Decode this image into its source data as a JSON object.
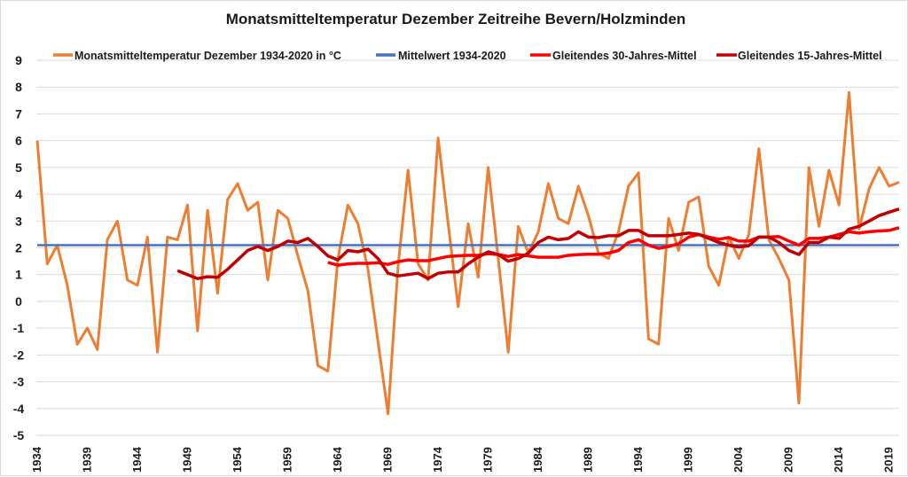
{
  "chart_data": {
    "type": "line",
    "title": "Monatsmitteltemperatur Dezember Zeitreihe Bevern/Holzminden",
    "xlabel": "",
    "ylabel": "",
    "ylim": [
      -5,
      9
    ],
    "yticks": [
      "9",
      "8",
      "7",
      "6",
      "5",
      "4",
      "3",
      "2",
      "1",
      "0",
      "-1",
      "-2",
      "-3",
      "-4",
      "-5"
    ],
    "ytick_values": [
      9,
      8,
      7,
      6,
      5,
      4,
      3,
      2,
      1,
      0,
      -1,
      -2,
      -3,
      -4,
      -5
    ],
    "xlim": [
      1934,
      2020
    ],
    "xticks": [
      "1934",
      "1939",
      "1944",
      "1949",
      "1954",
      "1959",
      "1964",
      "1969",
      "1974",
      "1979",
      "1984",
      "1989",
      "1994",
      "1999",
      "2004",
      "2009",
      "2014",
      "2019"
    ],
    "xtick_values": [
      1934,
      1939,
      1944,
      1949,
      1954,
      1959,
      1964,
      1969,
      1974,
      1979,
      1984,
      1989,
      1994,
      1999,
      2004,
      2009,
      2014,
      2019
    ],
    "grid": "horizontal",
    "legend_position": "top",
    "x": [
      1934,
      1935,
      1936,
      1937,
      1938,
      1939,
      1940,
      1941,
      1942,
      1943,
      1944,
      1945,
      1946,
      1947,
      1948,
      1949,
      1950,
      1951,
      1952,
      1953,
      1954,
      1955,
      1956,
      1957,
      1958,
      1959,
      1960,
      1961,
      1962,
      1963,
      1964,
      1965,
      1966,
      1967,
      1968,
      1969,
      1970,
      1971,
      1972,
      1973,
      1974,
      1975,
      1976,
      1977,
      1978,
      1979,
      1980,
      1981,
      1982,
      1983,
      1984,
      1985,
      1986,
      1987,
      1988,
      1989,
      1990,
      1991,
      1992,
      1993,
      1994,
      1995,
      1996,
      1997,
      1998,
      1999,
      2000,
      2001,
      2002,
      2003,
      2004,
      2005,
      2006,
      2007,
      2008,
      2009,
      2010,
      2011,
      2012,
      2013,
      2014,
      2015,
      2016,
      2017,
      2018,
      2019,
      2020
    ],
    "series": [
      {
        "name": "Monatsmitteltemperatur Dezember 1934-2020 in °C",
        "color": "#ED7D31",
        "start_year": 1934,
        "values": [
          6.0,
          1.4,
          2.1,
          0.6,
          -1.6,
          -1.0,
          -1.8,
          2.3,
          3.0,
          0.8,
          0.6,
          2.4,
          -1.9,
          2.4,
          2.3,
          3.6,
          -1.1,
          3.4,
          0.3,
          3.8,
          4.4,
          3.4,
          3.7,
          0.8,
          3.4,
          3.1,
          1.7,
          0.4,
          -2.4,
          -2.6,
          1.6,
          3.6,
          2.9,
          1.2,
          -1.5,
          -4.2,
          1.3,
          4.9,
          1.4,
          0.8,
          6.1,
          2.9,
          -0.2,
          2.9,
          0.9,
          5.0,
          1.6,
          -1.9,
          2.8,
          1.8,
          2.6,
          4.4,
          3.1,
          2.9,
          4.3,
          3.2,
          1.8,
          1.6,
          2.6,
          4.3,
          4.8,
          -1.4,
          -1.6,
          3.1,
          1.9,
          3.7,
          3.9,
          1.3,
          0.6,
          2.4,
          1.6,
          2.5,
          5.7,
          2.3,
          1.6,
          0.8,
          -3.8,
          5.0,
          2.8,
          4.9,
          3.6,
          7.8,
          2.7,
          4.2,
          5.0,
          4.3,
          4.45
        ]
      },
      {
        "name": "Mittelwert 1934-2020",
        "color": "#4472C4",
        "start_year": 1934,
        "constant": 2.1
      },
      {
        "name": "Gleitendes 30-Jahres-Mittel",
        "color": "#FF0000",
        "start_year": 1963,
        "values": [
          1.45,
          1.35,
          1.4,
          1.42,
          1.42,
          1.44,
          1.38,
          1.48,
          1.55,
          1.52,
          1.52,
          1.6,
          1.68,
          1.7,
          1.72,
          1.72,
          1.78,
          1.75,
          1.68,
          1.75,
          1.7,
          1.65,
          1.65,
          1.65,
          1.72,
          1.75,
          1.76,
          1.76,
          1.8,
          1.9,
          2.2,
          2.3,
          2.1,
          1.98,
          2.05,
          2.15,
          2.4,
          2.5,
          2.4,
          2.32,
          2.38,
          2.25,
          2.25,
          2.4,
          2.4,
          2.42,
          2.25,
          2.1,
          2.35,
          2.35,
          2.4,
          2.5,
          2.6,
          2.55,
          2.6,
          2.63,
          2.65,
          2.75
        ]
      },
      {
        "name": "Gleitendes 15-Jahres-Mittel",
        "color": "#C00000",
        "start_year": 1948,
        "values": [
          1.15,
          1.0,
          0.85,
          0.92,
          0.9,
          1.2,
          1.55,
          1.9,
          2.05,
          1.9,
          2.05,
          2.25,
          2.2,
          2.35,
          2.05,
          1.7,
          1.55,
          1.9,
          1.85,
          1.95,
          1.6,
          1.05,
          0.95,
          1.0,
          1.05,
          0.85,
          1.05,
          1.1,
          1.1,
          1.4,
          1.65,
          1.85,
          1.75,
          1.5,
          1.6,
          1.8,
          2.2,
          2.4,
          2.3,
          2.35,
          2.6,
          2.4,
          2.38,
          2.45,
          2.45,
          2.65,
          2.65,
          2.45,
          2.45,
          2.45,
          2.5,
          2.55,
          2.5,
          2.35,
          2.2,
          2.1,
          2.03,
          2.08,
          2.4,
          2.4,
          2.2,
          1.9,
          1.75,
          2.2,
          2.2,
          2.4,
          2.35,
          2.7,
          2.8,
          3.0,
          3.2,
          3.33,
          3.45
        ]
      }
    ]
  }
}
